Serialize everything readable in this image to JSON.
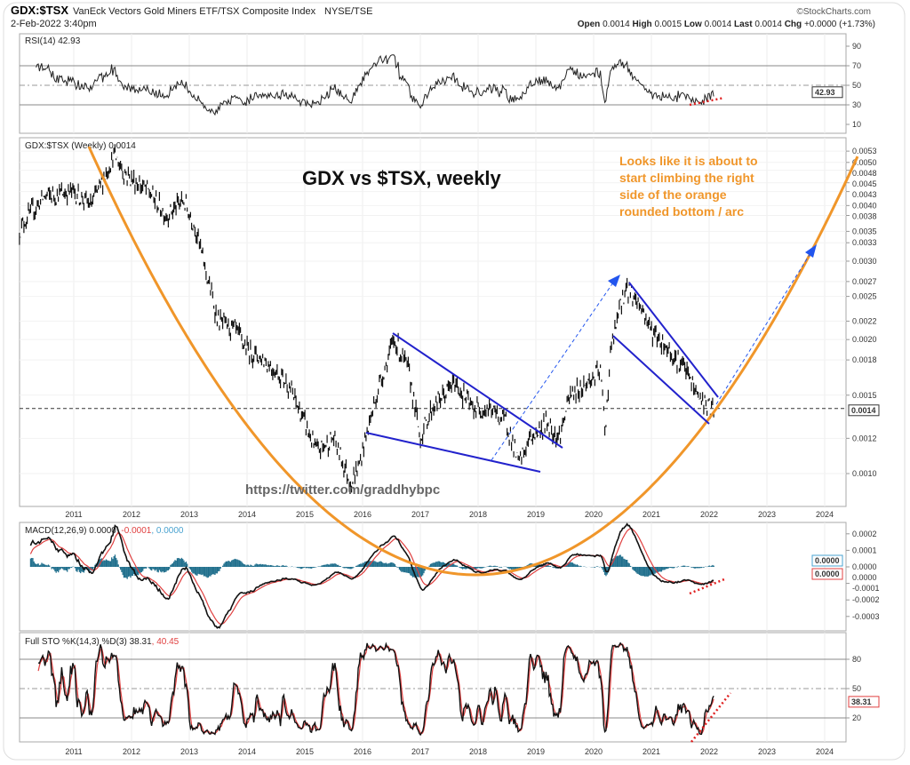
{
  "header": {
    "symbol": "GDX:$TSX",
    "description": "VanEck Vectors Gold Miners ETF/TSX Composite Index",
    "exchange": "NYSE/TSE",
    "date": "2-Feb-2022 3:40pm",
    "brand": "©StockCharts.com",
    "open_label": "Open",
    "open": "0.0014",
    "high_label": "High",
    "high": "0.0015",
    "low_label": "Low",
    "low": "0.0014",
    "last_label": "Last",
    "last": "0.0014",
    "chg_label": "Chg",
    "chg": "+0.0000 (+1.73%)"
  },
  "rsi": {
    "label": "RSI(14) 42.93",
    "value": "42.93",
    "ticks": [
      "90",
      "70",
      "50",
      "30",
      "10"
    ]
  },
  "main": {
    "label": "GDX:$TSX (Weekly) 0.0014",
    "last": "0.0014",
    "ticks": [
      "0.0053",
      "0.0050",
      "0.0048",
      "0.0045",
      "0.0043",
      "0.0040",
      "0.0038",
      "0.0035",
      "0.0033",
      "0.0030",
      "0.0027",
      "0.0025",
      "0.0022",
      "0.0020",
      "0.0018",
      "0.0015",
      "0.0012",
      "0.0010"
    ]
  },
  "macd": {
    "label": "MACD(12,26,9) 0.0000",
    "signal": ", -0.0001",
    "hist": ", 0.0000",
    "ticks": [
      "0.0002",
      "0.0001",
      "0.0000",
      "0.0000",
      "-0.0001",
      "-0.0002",
      "-0.0003"
    ],
    "hist_value": "0.0000",
    "macd_value": "0.0000"
  },
  "sto": {
    "label": "Full STO %K(14,3) %D(3) 38.31",
    "d": ", 40.45",
    "value": "38.31",
    "ticks": [
      "80",
      "50",
      "20"
    ]
  },
  "years": [
    "2011",
    "2012",
    "2013",
    "2014",
    "2015",
    "2016",
    "2017",
    "2018",
    "2019",
    "2020",
    "2021",
    "2022",
    "2023",
    "2024"
  ],
  "annotations": {
    "title": "GDX vs $TSX, weekly",
    "note": [
      "Looks like it is about to",
      "start climbing the right",
      "side of the orange",
      "rounded bottom / arc"
    ],
    "watermark": "https://twitter.com/graddhybpc"
  },
  "colors": {
    "arc": "#f0962a",
    "trend": "#2222cc",
    "macd_hist": "#1f6e8c",
    "signal": "#e04040"
  },
  "chart_data": {
    "type": "line",
    "title": "GDX:$TSX (Weekly)",
    "scale": "log",
    "ylim": [
      0.00085,
      0.0055
    ],
    "xlim": [
      2010.06,
      2024.6
    ],
    "price_anchors": [
      [
        2010.06,
        0.0035
      ],
      [
        2010.15,
        0.0037
      ],
      [
        2010.5,
        0.0042
      ],
      [
        2011.0,
        0.0043
      ],
      [
        2011.3,
        0.004
      ],
      [
        2011.7,
        0.0052
      ],
      [
        2011.9,
        0.0047
      ],
      [
        2012.3,
        0.0043
      ],
      [
        2012.6,
        0.0038
      ],
      [
        2012.9,
        0.0041
      ],
      [
        2013.1,
        0.0036
      ],
      [
        2013.3,
        0.0028
      ],
      [
        2013.5,
        0.0022
      ],
      [
        2013.8,
        0.0021
      ],
      [
        2014.0,
        0.0019
      ],
      [
        2014.3,
        0.0018
      ],
      [
        2014.7,
        0.0016
      ],
      [
        2015.0,
        0.0013
      ],
      [
        2015.2,
        0.00112
      ],
      [
        2015.5,
        0.0012
      ],
      [
        2015.8,
        0.00095
      ],
      [
        2015.95,
        0.00105
      ],
      [
        2016.05,
        0.0012
      ],
      [
        2016.3,
        0.0016
      ],
      [
        2016.55,
        0.002
      ],
      [
        2016.8,
        0.0017
      ],
      [
        2017.0,
        0.0012
      ],
      [
        2017.2,
        0.0014
      ],
      [
        2017.6,
        0.0016
      ],
      [
        2017.9,
        0.0014
      ],
      [
        2018.2,
        0.0014
      ],
      [
        2018.5,
        0.0013
      ],
      [
        2018.7,
        0.00105
      ],
      [
        2018.9,
        0.0012
      ],
      [
        2019.2,
        0.0013
      ],
      [
        2019.4,
        0.0012
      ],
      [
        2019.6,
        0.0015
      ],
      [
        2019.9,
        0.0016
      ],
      [
        2020.12,
        0.0017
      ],
      [
        2020.2,
        0.00125
      ],
      [
        2020.3,
        0.0019
      ],
      [
        2020.5,
        0.0025
      ],
      [
        2020.6,
        0.0026
      ],
      [
        2020.8,
        0.0024
      ],
      [
        2021.0,
        0.0021
      ],
      [
        2021.3,
        0.0019
      ],
      [
        2021.6,
        0.0017
      ],
      [
        2021.8,
        0.0015
      ],
      [
        2022.0,
        0.0014
      ],
      [
        2022.09,
        0.0014
      ]
    ],
    "indicators": {
      "rsi_period": 14,
      "macd": [
        12,
        26,
        9
      ],
      "sto": [
        14,
        3,
        3
      ]
    }
  }
}
